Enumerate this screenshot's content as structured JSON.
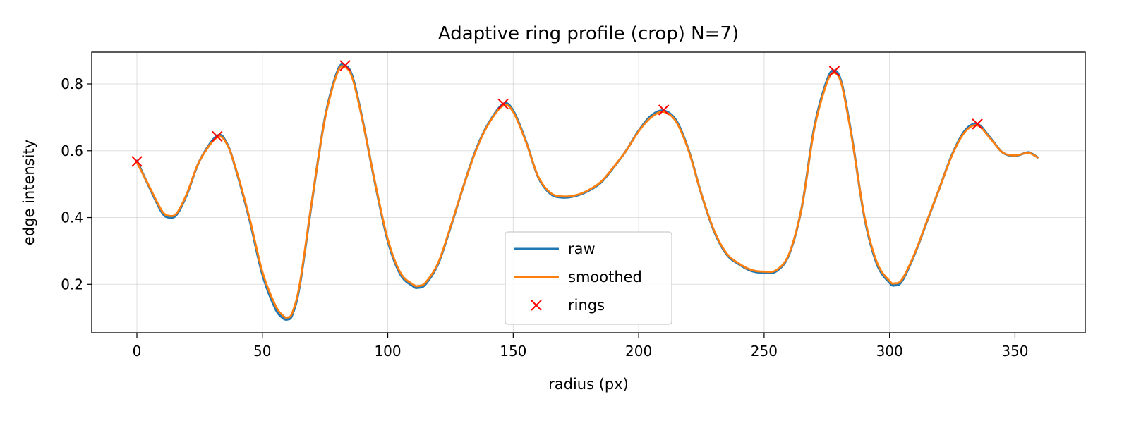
{
  "chart_data": {
    "type": "line",
    "title": "Adaptive ring profile (crop) N=7)",
    "xlabel": "radius (px)",
    "ylabel": "edge intensity",
    "xlim": [
      -18,
      378
    ],
    "ylim": [
      0.055,
      0.895
    ],
    "xticks": [
      0,
      50,
      100,
      150,
      200,
      250,
      300,
      350
    ],
    "yticks": [
      0.2,
      0.4,
      0.6,
      0.8
    ],
    "grid": true,
    "legend_position": "lower-center",
    "series": [
      {
        "name": "raw",
        "color": "#1f77b4",
        "x": [
          0,
          5,
          10,
          13,
          16,
          20,
          25,
          32,
          36,
          40,
          45,
          50,
          55,
          58,
          60,
          62,
          65,
          70,
          75,
          80,
          83,
          86,
          90,
          95,
          100,
          105,
          110,
          112,
          115,
          120,
          125,
          130,
          135,
          140,
          146,
          150,
          155,
          160,
          165,
          170,
          175,
          180,
          185,
          190,
          195,
          200,
          205,
          210,
          215,
          220,
          225,
          230,
          235,
          240,
          245,
          250,
          255,
          260,
          265,
          270,
          275,
          278,
          281,
          285,
          290,
          295,
          300,
          302,
          305,
          310,
          315,
          320,
          325,
          330,
          335,
          340,
          345,
          350,
          355,
          357,
          359
        ],
        "y": [
          0.57,
          0.49,
          0.415,
          0.4,
          0.41,
          0.47,
          0.57,
          0.645,
          0.62,
          0.53,
          0.39,
          0.23,
          0.13,
          0.1,
          0.095,
          0.11,
          0.2,
          0.46,
          0.7,
          0.84,
          0.855,
          0.82,
          0.69,
          0.5,
          0.33,
          0.23,
          0.195,
          0.19,
          0.2,
          0.26,
          0.37,
          0.49,
          0.6,
          0.68,
          0.74,
          0.72,
          0.63,
          0.52,
          0.47,
          0.46,
          0.465,
          0.48,
          0.505,
          0.55,
          0.6,
          0.66,
          0.705,
          0.72,
          0.69,
          0.6,
          0.47,
          0.36,
          0.29,
          0.26,
          0.24,
          0.235,
          0.24,
          0.29,
          0.43,
          0.67,
          0.81,
          0.84,
          0.8,
          0.64,
          0.4,
          0.26,
          0.205,
          0.197,
          0.21,
          0.29,
          0.39,
          0.49,
          0.59,
          0.66,
          0.68,
          0.64,
          0.595,
          0.585,
          0.595,
          0.59,
          0.58
        ]
      },
      {
        "name": "smoothed",
        "color": "#ff7f0e",
        "x": [
          0,
          5,
          10,
          13,
          16,
          20,
          25,
          32,
          36,
          40,
          45,
          50,
          55,
          58,
          60,
          62,
          65,
          70,
          75,
          80,
          83,
          86,
          90,
          95,
          100,
          105,
          110,
          112,
          115,
          120,
          125,
          130,
          135,
          140,
          146,
          150,
          155,
          160,
          165,
          170,
          175,
          180,
          185,
          190,
          195,
          200,
          205,
          210,
          215,
          220,
          225,
          230,
          235,
          240,
          245,
          250,
          255,
          260,
          265,
          270,
          275,
          278,
          281,
          285,
          290,
          295,
          300,
          302,
          305,
          310,
          315,
          320,
          325,
          330,
          335,
          340,
          345,
          350,
          355,
          357,
          359
        ],
        "y": [
          0.565,
          0.492,
          0.42,
          0.405,
          0.414,
          0.473,
          0.57,
          0.64,
          0.618,
          0.532,
          0.395,
          0.238,
          0.14,
          0.108,
          0.101,
          0.116,
          0.205,
          0.462,
          0.697,
          0.835,
          0.85,
          0.815,
          0.688,
          0.502,
          0.335,
          0.235,
          0.2,
          0.195,
          0.205,
          0.263,
          0.372,
          0.49,
          0.598,
          0.678,
          0.735,
          0.716,
          0.628,
          0.522,
          0.473,
          0.463,
          0.467,
          0.482,
          0.507,
          0.551,
          0.6,
          0.658,
          0.7,
          0.716,
          0.686,
          0.598,
          0.47,
          0.362,
          0.293,
          0.262,
          0.243,
          0.238,
          0.243,
          0.292,
          0.43,
          0.665,
          0.803,
          0.833,
          0.795,
          0.637,
          0.403,
          0.265,
          0.21,
          0.203,
          0.215,
          0.292,
          0.391,
          0.49,
          0.588,
          0.656,
          0.676,
          0.638,
          0.595,
          0.586,
          0.594,
          0.589,
          0.58
        ]
      },
      {
        "name": "rings",
        "color": "#ff0000",
        "marker": "x",
        "x": [
          0,
          32,
          83,
          146,
          210,
          278,
          335
        ],
        "y": [
          0.568,
          0.643,
          0.855,
          0.74,
          0.722,
          0.838,
          0.68
        ]
      }
    ]
  }
}
